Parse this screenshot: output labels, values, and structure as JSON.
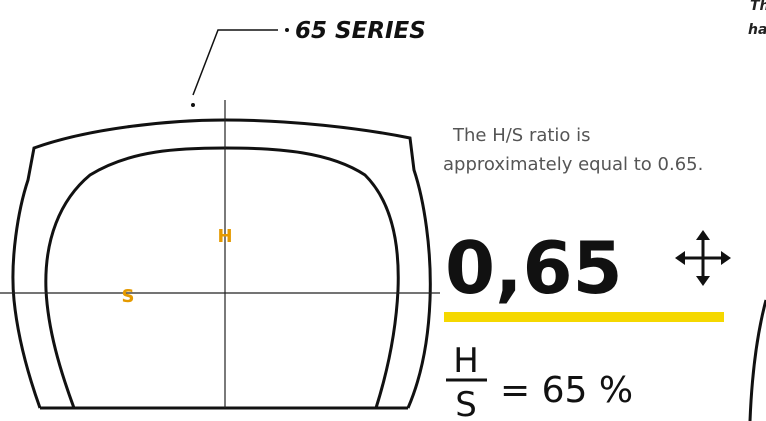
{
  "callout": {
    "label": "65 SERIES"
  },
  "corner_note": {
    "lines": [
      "Th",
      "ha"
    ]
  },
  "diagram": {
    "height_label": "H",
    "width_label": "S"
  },
  "explanation": {
    "lines": [
      "The H/S ratio is",
      "approximately equal to 0.65."
    ]
  },
  "ratio": {
    "value_text": "0,65",
    "numerator": "H",
    "denominator": "S",
    "result": "= 65 %"
  }
}
